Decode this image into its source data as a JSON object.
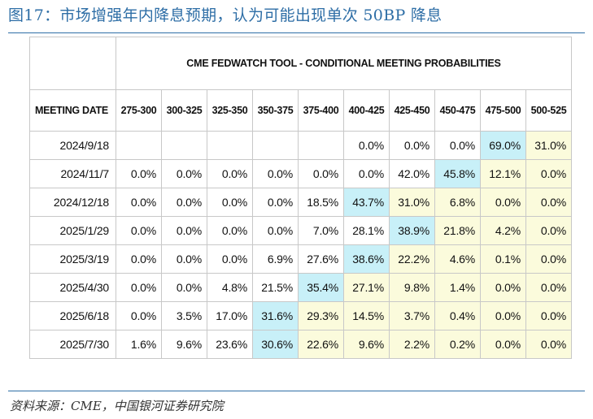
{
  "title": "图17：市场增强年内降息预期，认为可能出现单次 50BP 降息",
  "source": "资料来源：CME，中国银河证券研究院",
  "colors": {
    "title": "#2e6ea6",
    "highlight_max": "#c8f0f8",
    "highlight_above": "#fbfbdc",
    "border": "#c8c8c8"
  },
  "chart_data": {
    "type": "table",
    "title": "CME FEDWATCH TOOL - CONDITIONAL MEETING PROBABILITIES",
    "row_header": "MEETING DATE",
    "columns": [
      "275-300",
      "300-325",
      "325-350",
      "350-375",
      "375-400",
      "400-425",
      "425-450",
      "450-475",
      "475-500",
      "500-525"
    ],
    "rows": [
      {
        "date": "2024/9/18",
        "values": [
          "",
          "",
          "",
          "",
          "",
          "0.0%",
          "0.0%",
          "0.0%",
          "69.0%",
          "31.0%"
        ],
        "max_index": 8
      },
      {
        "date": "2024/11/7",
        "values": [
          "0.0%",
          "0.0%",
          "0.0%",
          "0.0%",
          "0.0%",
          "0.0%",
          "42.0%",
          "45.8%",
          "12.1%",
          "0.0%"
        ],
        "max_index": 7
      },
      {
        "date": "2024/12/18",
        "values": [
          "0.0%",
          "0.0%",
          "0.0%",
          "0.0%",
          "18.5%",
          "43.7%",
          "31.0%",
          "6.8%",
          "0.0%",
          "0.0%"
        ],
        "max_index": 5
      },
      {
        "date": "2025/1/29",
        "values": [
          "0.0%",
          "0.0%",
          "0.0%",
          "0.0%",
          "7.0%",
          "28.1%",
          "38.9%",
          "21.8%",
          "4.2%",
          "0.0%"
        ],
        "max_index": 6
      },
      {
        "date": "2025/3/19",
        "values": [
          "0.0%",
          "0.0%",
          "0.0%",
          "6.9%",
          "27.6%",
          "38.6%",
          "22.2%",
          "4.6%",
          "0.1%",
          "0.0%"
        ],
        "max_index": 5
      },
      {
        "date": "2025/4/30",
        "values": [
          "0.0%",
          "0.0%",
          "4.8%",
          "21.5%",
          "35.4%",
          "27.1%",
          "9.8%",
          "1.4%",
          "0.0%",
          "0.0%"
        ],
        "max_index": 4
      },
      {
        "date": "2025/6/18",
        "values": [
          "0.0%",
          "3.5%",
          "17.0%",
          "31.6%",
          "29.3%",
          "14.5%",
          "3.7%",
          "0.4%",
          "0.0%",
          "0.0%"
        ],
        "max_index": 3
      },
      {
        "date": "2025/7/30",
        "values": [
          "1.6%",
          "9.6%",
          "23.6%",
          "30.6%",
          "22.6%",
          "9.6%",
          "2.2%",
          "0.2%",
          "0.0%",
          "0.0%"
        ],
        "max_index": 3
      }
    ]
  }
}
